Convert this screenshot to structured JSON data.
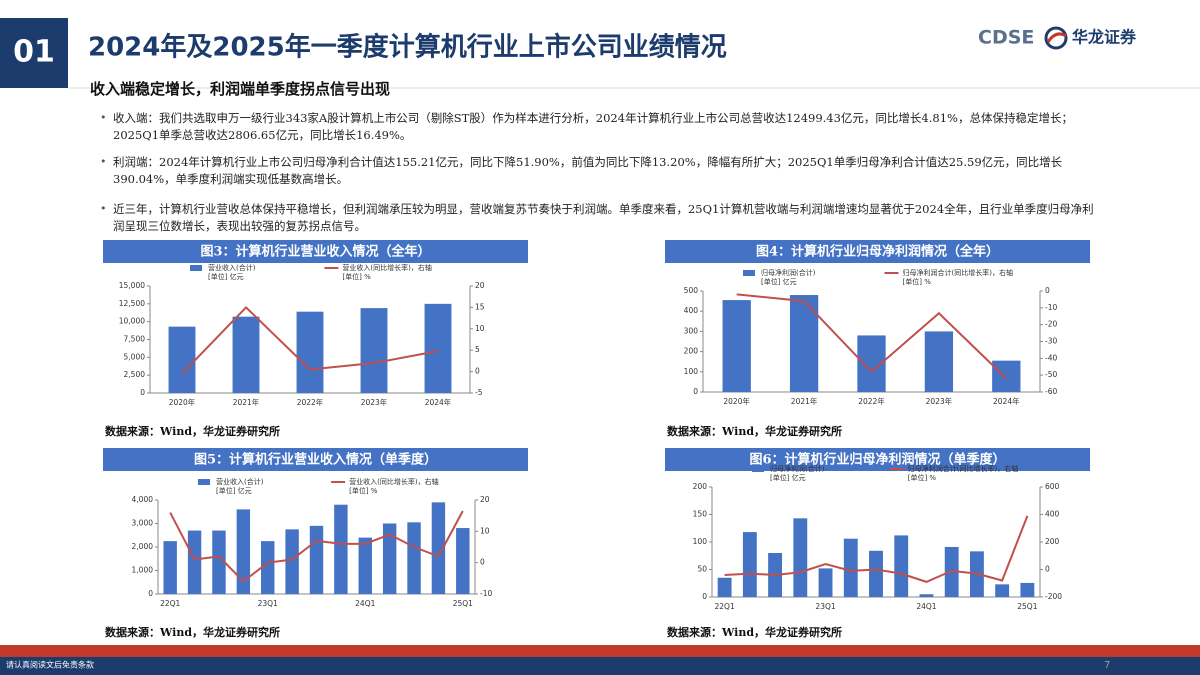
{
  "header": {
    "number": "01",
    "title": "2024年及2025年一季度计算机行业上市公司业绩情况",
    "logo_text": "CDSE",
    "logo_name": "华龙证券"
  },
  "subtitle": "收入端稳定增长，利润端单季度拐点信号出现",
  "bullets": [
    "收入端：我们共选取申万一级行业343家A股计算机上市公司（剔除ST股）作为样本进行分析，2024年计算机行业上市公司总营收达12499.43亿元，同比增长4.81%，总体保持稳定增长；2025Q1单季总营收达2806.65亿元，同比增长16.49%。",
    "利润端：2024年计算机行业上市公司归母净利合计值达155.21亿元，同比下降51.90%，前值为同比下降13.20%，降幅有所扩大；2025Q1单季归母净利合计值达25.59亿元，同比增长390.04%，单季度利润端实现低基数高增长。",
    "近三年，计算机行业营收总体保持平稳增长，但利润端承压较为明显，营收端复苏节奏快于利润端。单季度来看，25Q1计算机营收端与利润端增速均显著优于2024全年，且行业单季度归母净利润呈现三位数增长，表现出较强的复苏拐点信号。"
  ],
  "footer": {
    "disclaimer": "请认真阅读文后免责条款",
    "page": "7"
  },
  "chart_data": [
    {
      "type": "combo",
      "title": "图3：计算机行业营业收入情况（全年）",
      "source": "数据来源：Wind，华龙证券研究所",
      "categories": [
        "2020年",
        "2021年",
        "2022年",
        "2023年",
        "2024年"
      ],
      "series": [
        {
          "name": "营业收入(合计)",
          "unit": "[单位] 亿元",
          "type": "bar",
          "color": "#4472c4",
          "values": [
            9300,
            10700,
            11400,
            11900,
            12499.43
          ]
        },
        {
          "name": "营业收入(同比增长率)，右轴",
          "unit": "[单位] %",
          "type": "line",
          "axis": "y2",
          "color": "#c0504d",
          "values": [
            -0.5,
            15,
            0.5,
            2,
            4.81
          ]
        }
      ],
      "ylim": [
        0,
        15000
      ],
      "yticks": [
        0,
        {
          "value": 2500,
          "label": "2,500"
        },
        {
          "value": 5000,
          "label": "5,000"
        },
        {
          "value": 7500,
          "label": "7,500"
        },
        {
          "value": 10000,
          "label": "10,000"
        },
        {
          "value": 12500,
          "label": "12,500"
        },
        {
          "value": 15000,
          "label": "15,000"
        }
      ],
      "y2lim": [
        -5,
        20
      ],
      "y2ticks": [
        -5,
        0,
        5,
        10,
        15,
        20
      ]
    },
    {
      "type": "combo",
      "title": "图4：计算机行业归母净利润情况（全年）",
      "source": "数据来源：Wind，华龙证券研究所",
      "categories": [
        "2020年",
        "2021年",
        "2022年",
        "2023年",
        "2024年"
      ],
      "series": [
        {
          "name": "归母净利润(合计)",
          "unit": "[单位] 亿元",
          "type": "bar",
          "color": "#4472c4",
          "values": [
            455,
            480,
            280,
            300,
            155.21
          ]
        },
        {
          "name": "归母净利润合计(同比增长率)，右轴",
          "unit": "[单位] %",
          "type": "line",
          "axis": "y2",
          "color": "#c0504d",
          "values": [
            -2,
            -6,
            -48,
            -13.2,
            -51.9
          ]
        }
      ],
      "ylim": [
        0,
        500
      ],
      "yticks": [
        0,
        100,
        200,
        300,
        400,
        500
      ],
      "y2lim": [
        -60,
        0
      ],
      "y2ticks": [
        -60,
        -50,
        -40,
        -30,
        -20,
        -10,
        0
      ]
    },
    {
      "type": "combo",
      "title": "图5：计算机行业营业收入情况（单季度）",
      "source": "数据来源：Wind，华龙证券研究所",
      "categories": [
        "22Q1",
        null,
        null,
        null,
        "23Q1",
        null,
        null,
        null,
        "24Q1",
        null,
        null,
        null,
        "25Q1"
      ],
      "series": [
        {
          "name": "营业收入(合计)",
          "unit": "[单位] 亿元",
          "type": "bar",
          "color": "#4472c4",
          "values": [
            2250,
            2700,
            2700,
            3600,
            2250,
            2750,
            2900,
            3800,
            2400,
            3000,
            3050,
            3900,
            2806.65
          ]
        },
        {
          "name": "营业收入(同比增长率)，右轴",
          "unit": "[单位] %",
          "type": "line",
          "axis": "y2",
          "color": "#c0504d",
          "values": [
            16,
            1,
            2,
            -6,
            0,
            1,
            7,
            6,
            6,
            9,
            5,
            2,
            16.49
          ]
        }
      ],
      "ylim": [
        0,
        4000
      ],
      "yticks": [
        0,
        {
          "value": 1000,
          "label": "1,000"
        },
        {
          "value": 2000,
          "label": "2,000"
        },
        {
          "value": 3000,
          "label": "3,000"
        },
        {
          "value": 4000,
          "label": "4,000"
        }
      ],
      "y2lim": [
        -10,
        20
      ],
      "y2ticks": [
        -10,
        0,
        10,
        20
      ]
    },
    {
      "type": "combo",
      "title": "图6：计算机行业归母净利润情况（单季度）",
      "source": "数据来源：Wind，华龙证券研究所",
      "categories": [
        "22Q1",
        null,
        null,
        null,
        "23Q1",
        null,
        null,
        null,
        "24Q1",
        null,
        null,
        null,
        "25Q1"
      ],
      "series": [
        {
          "name": "归母净利润(合计)",
          "unit": "[单位] 亿元",
          "type": "bar",
          "color": "#4472c4",
          "values": [
            35,
            118,
            80,
            143,
            52,
            106,
            84,
            112,
            5,
            91,
            83,
            23,
            25.59
          ]
        },
        {
          "name": "归母净利润合计(同比增长率)，右轴",
          "unit": "[单位] %",
          "type": "line",
          "axis": "y2",
          "color": "#c0504d",
          "values": [
            -40,
            -30,
            -40,
            -20,
            40,
            -10,
            0,
            -30,
            -90,
            -10,
            -30,
            -80,
            390.04
          ]
        }
      ],
      "ylim": [
        0,
        200
      ],
      "yticks": [
        0,
        50,
        100,
        150,
        200
      ],
      "y2lim": [
        -200,
        600
      ],
      "y2ticks": [
        -200,
        0,
        200,
        400,
        600
      ]
    }
  ]
}
